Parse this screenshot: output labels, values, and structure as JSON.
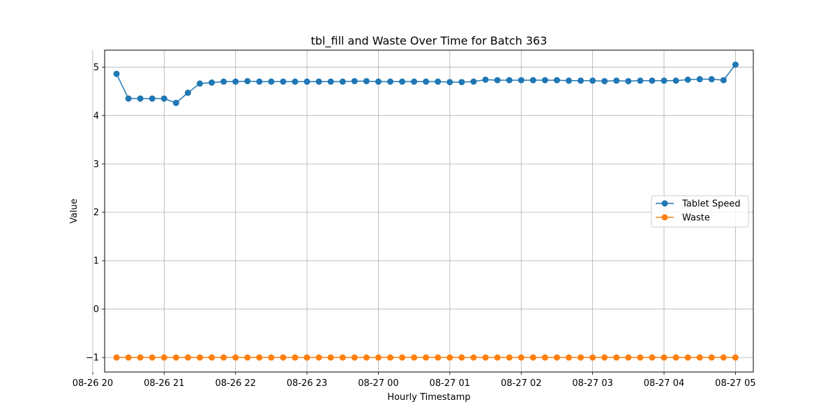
{
  "chart_data": {
    "type": "line",
    "title": "tbl_fill and Waste Over Time for Batch 363",
    "xlabel": "Hourly Timestamp",
    "ylabel": "Value",
    "ylim": [
      -1.3,
      5.35
    ],
    "xlim": [
      "08-26 20:10",
      "08-27 05:15"
    ],
    "grid": true,
    "legend_position": "center-right",
    "yticks": [
      -1,
      0,
      1,
      2,
      3,
      4,
      5
    ],
    "yticks_labels": [
      "−1",
      "0",
      "1",
      "2",
      "3",
      "4",
      "5"
    ],
    "xticks": [
      {
        "time": "08-26 20:00",
        "label": "08-26 20"
      },
      {
        "time": "08-26 21:00",
        "label": "08-26 21"
      },
      {
        "time": "08-26 22:00",
        "label": "08-26 22"
      },
      {
        "time": "08-26 23:00",
        "label": "08-26 23"
      },
      {
        "time": "08-27 00:00",
        "label": "08-27 00"
      },
      {
        "time": "08-27 01:00",
        "label": "08-27 01"
      },
      {
        "time": "08-27 02:00",
        "label": "08-27 02"
      },
      {
        "time": "08-27 03:00",
        "label": "08-27 03"
      },
      {
        "time": "08-27 04:00",
        "label": "08-27 04"
      },
      {
        "time": "08-27 05:00",
        "label": "08-27 05"
      }
    ],
    "x": [
      "08-26 20:20",
      "08-26 20:30",
      "08-26 20:40",
      "08-26 20:50",
      "08-26 21:00",
      "08-26 21:10",
      "08-26 21:20",
      "08-26 21:30",
      "08-26 21:40",
      "08-26 21:50",
      "08-26 22:00",
      "08-26 22:10",
      "08-26 22:20",
      "08-26 22:30",
      "08-26 22:40",
      "08-26 22:50",
      "08-26 23:00",
      "08-26 23:10",
      "08-26 23:20",
      "08-26 23:30",
      "08-26 23:40",
      "08-26 23:50",
      "08-27 00:00",
      "08-27 00:10",
      "08-27 00:20",
      "08-27 00:30",
      "08-27 00:40",
      "08-27 00:50",
      "08-27 01:00",
      "08-27 01:10",
      "08-27 01:20",
      "08-27 01:30",
      "08-27 01:40",
      "08-27 01:50",
      "08-27 02:00",
      "08-27 02:10",
      "08-27 02:20",
      "08-27 02:30",
      "08-27 02:40",
      "08-27 02:50",
      "08-27 03:00",
      "08-27 03:10",
      "08-27 03:20",
      "08-27 03:30",
      "08-27 03:40",
      "08-27 03:50",
      "08-27 04:00",
      "08-27 04:10",
      "08-27 04:20",
      "08-27 04:30",
      "08-27 04:40",
      "08-27 04:50",
      "08-27 05:00"
    ],
    "series": [
      {
        "name": "Tablet Speed",
        "color": "#1f77b4",
        "values": [
          4.86,
          4.35,
          4.35,
          4.35,
          4.35,
          4.26,
          4.47,
          4.66,
          4.68,
          4.7,
          4.7,
          4.71,
          4.7,
          4.7,
          4.7,
          4.7,
          4.7,
          4.7,
          4.7,
          4.7,
          4.71,
          4.71,
          4.7,
          4.7,
          4.7,
          4.7,
          4.7,
          4.7,
          4.69,
          4.69,
          4.7,
          4.74,
          4.73,
          4.73,
          4.73,
          4.73,
          4.73,
          4.73,
          4.72,
          4.72,
          4.72,
          4.71,
          4.72,
          4.71,
          4.72,
          4.72,
          4.72,
          4.72,
          4.74,
          4.75,
          4.75,
          4.73,
          5.05
        ]
      },
      {
        "name": "Waste",
        "color": "#ff7f0e",
        "values": [
          -1,
          -1,
          -1,
          -1,
          -1,
          -1,
          -1,
          -1,
          -1,
          -1,
          -1,
          -1,
          -1,
          -1,
          -1,
          -1,
          -1,
          -1,
          -1,
          -1,
          -1,
          -1,
          -1,
          -1,
          -1,
          -1,
          -1,
          -1,
          -1,
          -1,
          -1,
          -1,
          -1,
          -1,
          -1,
          -1,
          -1,
          -1,
          -1,
          -1,
          -1,
          -1,
          -1,
          -1,
          -1,
          -1,
          -1,
          -1,
          -1,
          -1,
          -1,
          -1,
          -1
        ]
      }
    ]
  }
}
